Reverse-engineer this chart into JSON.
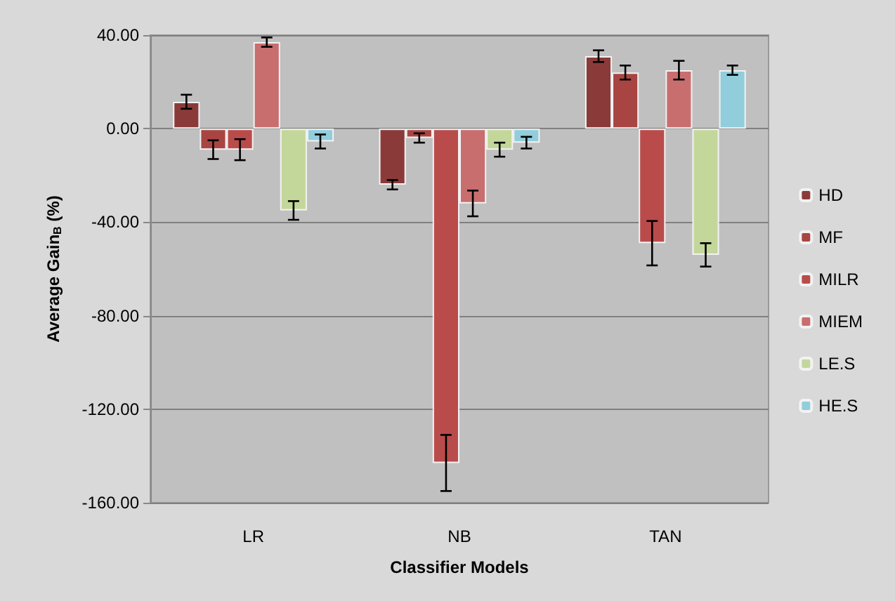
{
  "chart_data": {
    "type": "bar",
    "xlabel": "Classifier Models",
    "ylabel": "Average Gain$_{B}$ (%)",
    "categories": [
      "LR",
      "NB",
      "TAN"
    ],
    "series": [
      {
        "name": "HD",
        "color": "#8b3a3a",
        "values": [
          11.5,
          -24,
          31
        ],
        "errors": [
          3,
          2,
          2.5
        ]
      },
      {
        "name": "MF",
        "color": "#a84542",
        "values": [
          -9,
          -4,
          24
        ],
        "errors": [
          4,
          2,
          3
        ]
      },
      {
        "name": "MILR",
        "color": "#b94c4b",
        "values": [
          -9,
          -143,
          -49
        ],
        "errors": [
          4.5,
          12,
          9.5
        ]
      },
      {
        "name": "MIEM",
        "color": "#c96e6e",
        "values": [
          37,
          -32,
          25
        ],
        "errors": [
          2,
          5.5,
          4
        ]
      },
      {
        "name": "LE.S",
        "color": "#c4d79b",
        "values": [
          -35,
          -9,
          -54
        ],
        "errors": [
          4,
          3,
          5
        ]
      },
      {
        "name": "HE.S",
        "color": "#92cddc",
        "values": [
          -5.5,
          -6,
          25
        ],
        "errors": [
          3,
          2.5,
          2
        ]
      }
    ],
    "ylim": [
      -160,
      40
    ],
    "yticks": [
      {
        "value": -160,
        "label": "-160.00"
      },
      {
        "value": -120,
        "label": "-120.00"
      },
      {
        "value": -80,
        "label": "-80.00"
      },
      {
        "value": -40,
        "label": "-40.00"
      },
      {
        "value": 0,
        "label": "0.00"
      },
      {
        "value": 40,
        "label": "40.00"
      }
    ],
    "grid": "y",
    "legend": "right"
  }
}
